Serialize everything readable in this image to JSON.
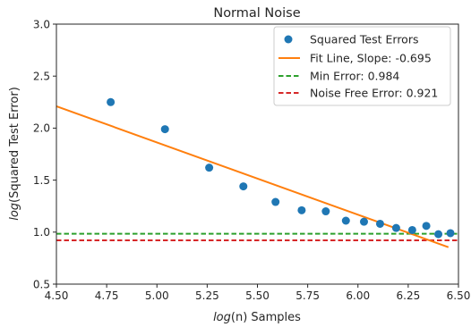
{
  "chart_data": {
    "type": "scatter",
    "title": "Normal Noise",
    "xlabel_log": "log",
    "xlabel_arg": "(n)",
    "xlabel_rest": " Samples",
    "ylabel_log": "log",
    "ylabel_rest": "(Squared Test Error)",
    "xlim": [
      4.5,
      6.5
    ],
    "ylim": [
      0.5,
      3.0
    ],
    "x_ticks": [
      4.5,
      4.75,
      5.0,
      5.25,
      5.5,
      5.75,
      6.0,
      6.25,
      6.5
    ],
    "x_tick_labels": [
      "4.50",
      "4.75",
      "5.00",
      "5.25",
      "5.50",
      "5.75",
      "6.00",
      "6.25",
      "6.50"
    ],
    "y_ticks": [
      0.5,
      1.0,
      1.5,
      2.0,
      2.5,
      3.0
    ],
    "y_tick_labels": [
      "0.5",
      "1.0",
      "1.5",
      "2.0",
      "2.5",
      "3.0"
    ],
    "grid": false,
    "legend_position": "top-right",
    "series": [
      {
        "name": "Squared Test Errors",
        "kind": "scatter",
        "color": "#1f77b4",
        "x": [
          4.77,
          5.04,
          5.26,
          5.43,
          5.59,
          5.72,
          5.84,
          5.94,
          6.03,
          6.11,
          6.19,
          6.27,
          6.34,
          6.4,
          6.46
        ],
        "y": [
          2.25,
          1.99,
          1.62,
          1.44,
          1.29,
          1.21,
          1.2,
          1.11,
          1.1,
          1.08,
          1.04,
          1.02,
          1.06,
          0.98,
          0.99
        ]
      },
      {
        "name": "Fit Line, Slope: -0.695",
        "kind": "line",
        "color": "#ff7f0e",
        "x": [
          4.5,
          6.45
        ],
        "y": [
          2.21,
          0.855
        ]
      },
      {
        "name": "Min Error: 0.984",
        "kind": "hline",
        "color": "#2ca02c",
        "y": 0.984
      },
      {
        "name": "Noise Free Error: 0.921",
        "kind": "hline",
        "color": "#d62728",
        "y": 0.921
      }
    ]
  }
}
